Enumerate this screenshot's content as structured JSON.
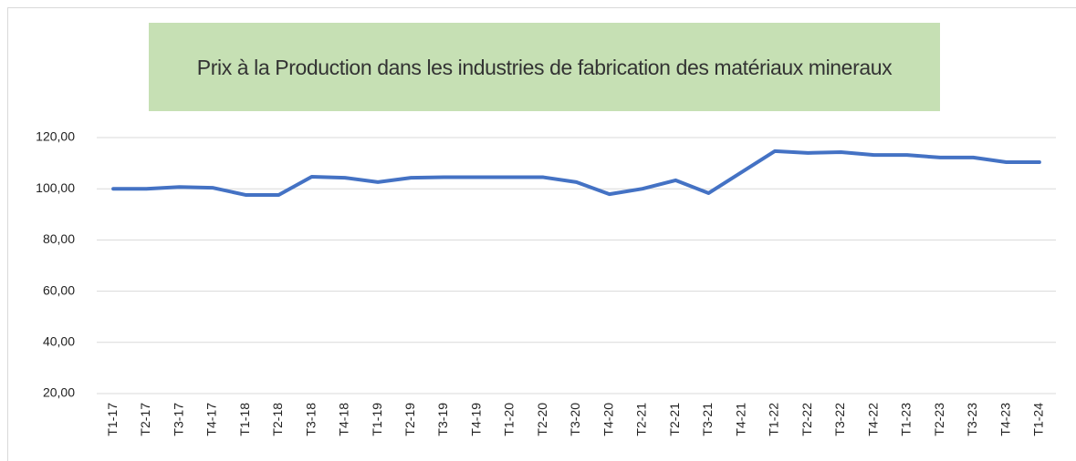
{
  "chart_data": {
    "type": "line",
    "title": "Prix à la Production dans les industries de fabrication des matériaux mineraux",
    "categories": [
      "T1-17",
      "T2-17",
      "T3-17",
      "T4-17",
      "T1-18",
      "T2-18",
      "T3-18",
      "T4-18",
      "T1-19",
      "T2-19",
      "T3-19",
      "T4-19",
      "T1-20",
      "T2-20",
      "T3-20",
      "T4-20",
      "T2-21",
      "T2-21",
      "T3-21",
      "T4-21",
      "T1-22",
      "T2-22",
      "T3-22",
      "T4-22",
      "T1-23",
      "T2-23",
      "T3-23",
      "T4-23",
      "T1-24"
    ],
    "values": [
      100,
      100,
      100.7,
      100.4,
      97.6,
      97.6,
      104.7,
      104.3,
      102.6,
      104.3,
      104.5,
      104.5,
      104.5,
      104.5,
      102.6,
      97.9,
      100,
      103.3,
      98.3,
      106.5,
      114.7,
      114,
      114.3,
      113.2,
      113.2,
      112.2,
      112.2,
      110.4,
      110.4
    ],
    "color": "#4472c4",
    "ylim": [
      20,
      120
    ],
    "yticks": [
      {
        "value": 20,
        "label": "20,00"
      },
      {
        "value": 40,
        "label": "40,00"
      },
      {
        "value": 60,
        "label": "60,00"
      },
      {
        "value": 80,
        "label": "80,00"
      },
      {
        "value": 100,
        "label": "100,00"
      },
      {
        "value": 120,
        "label": "120,00"
      }
    ],
    "grid": true
  }
}
